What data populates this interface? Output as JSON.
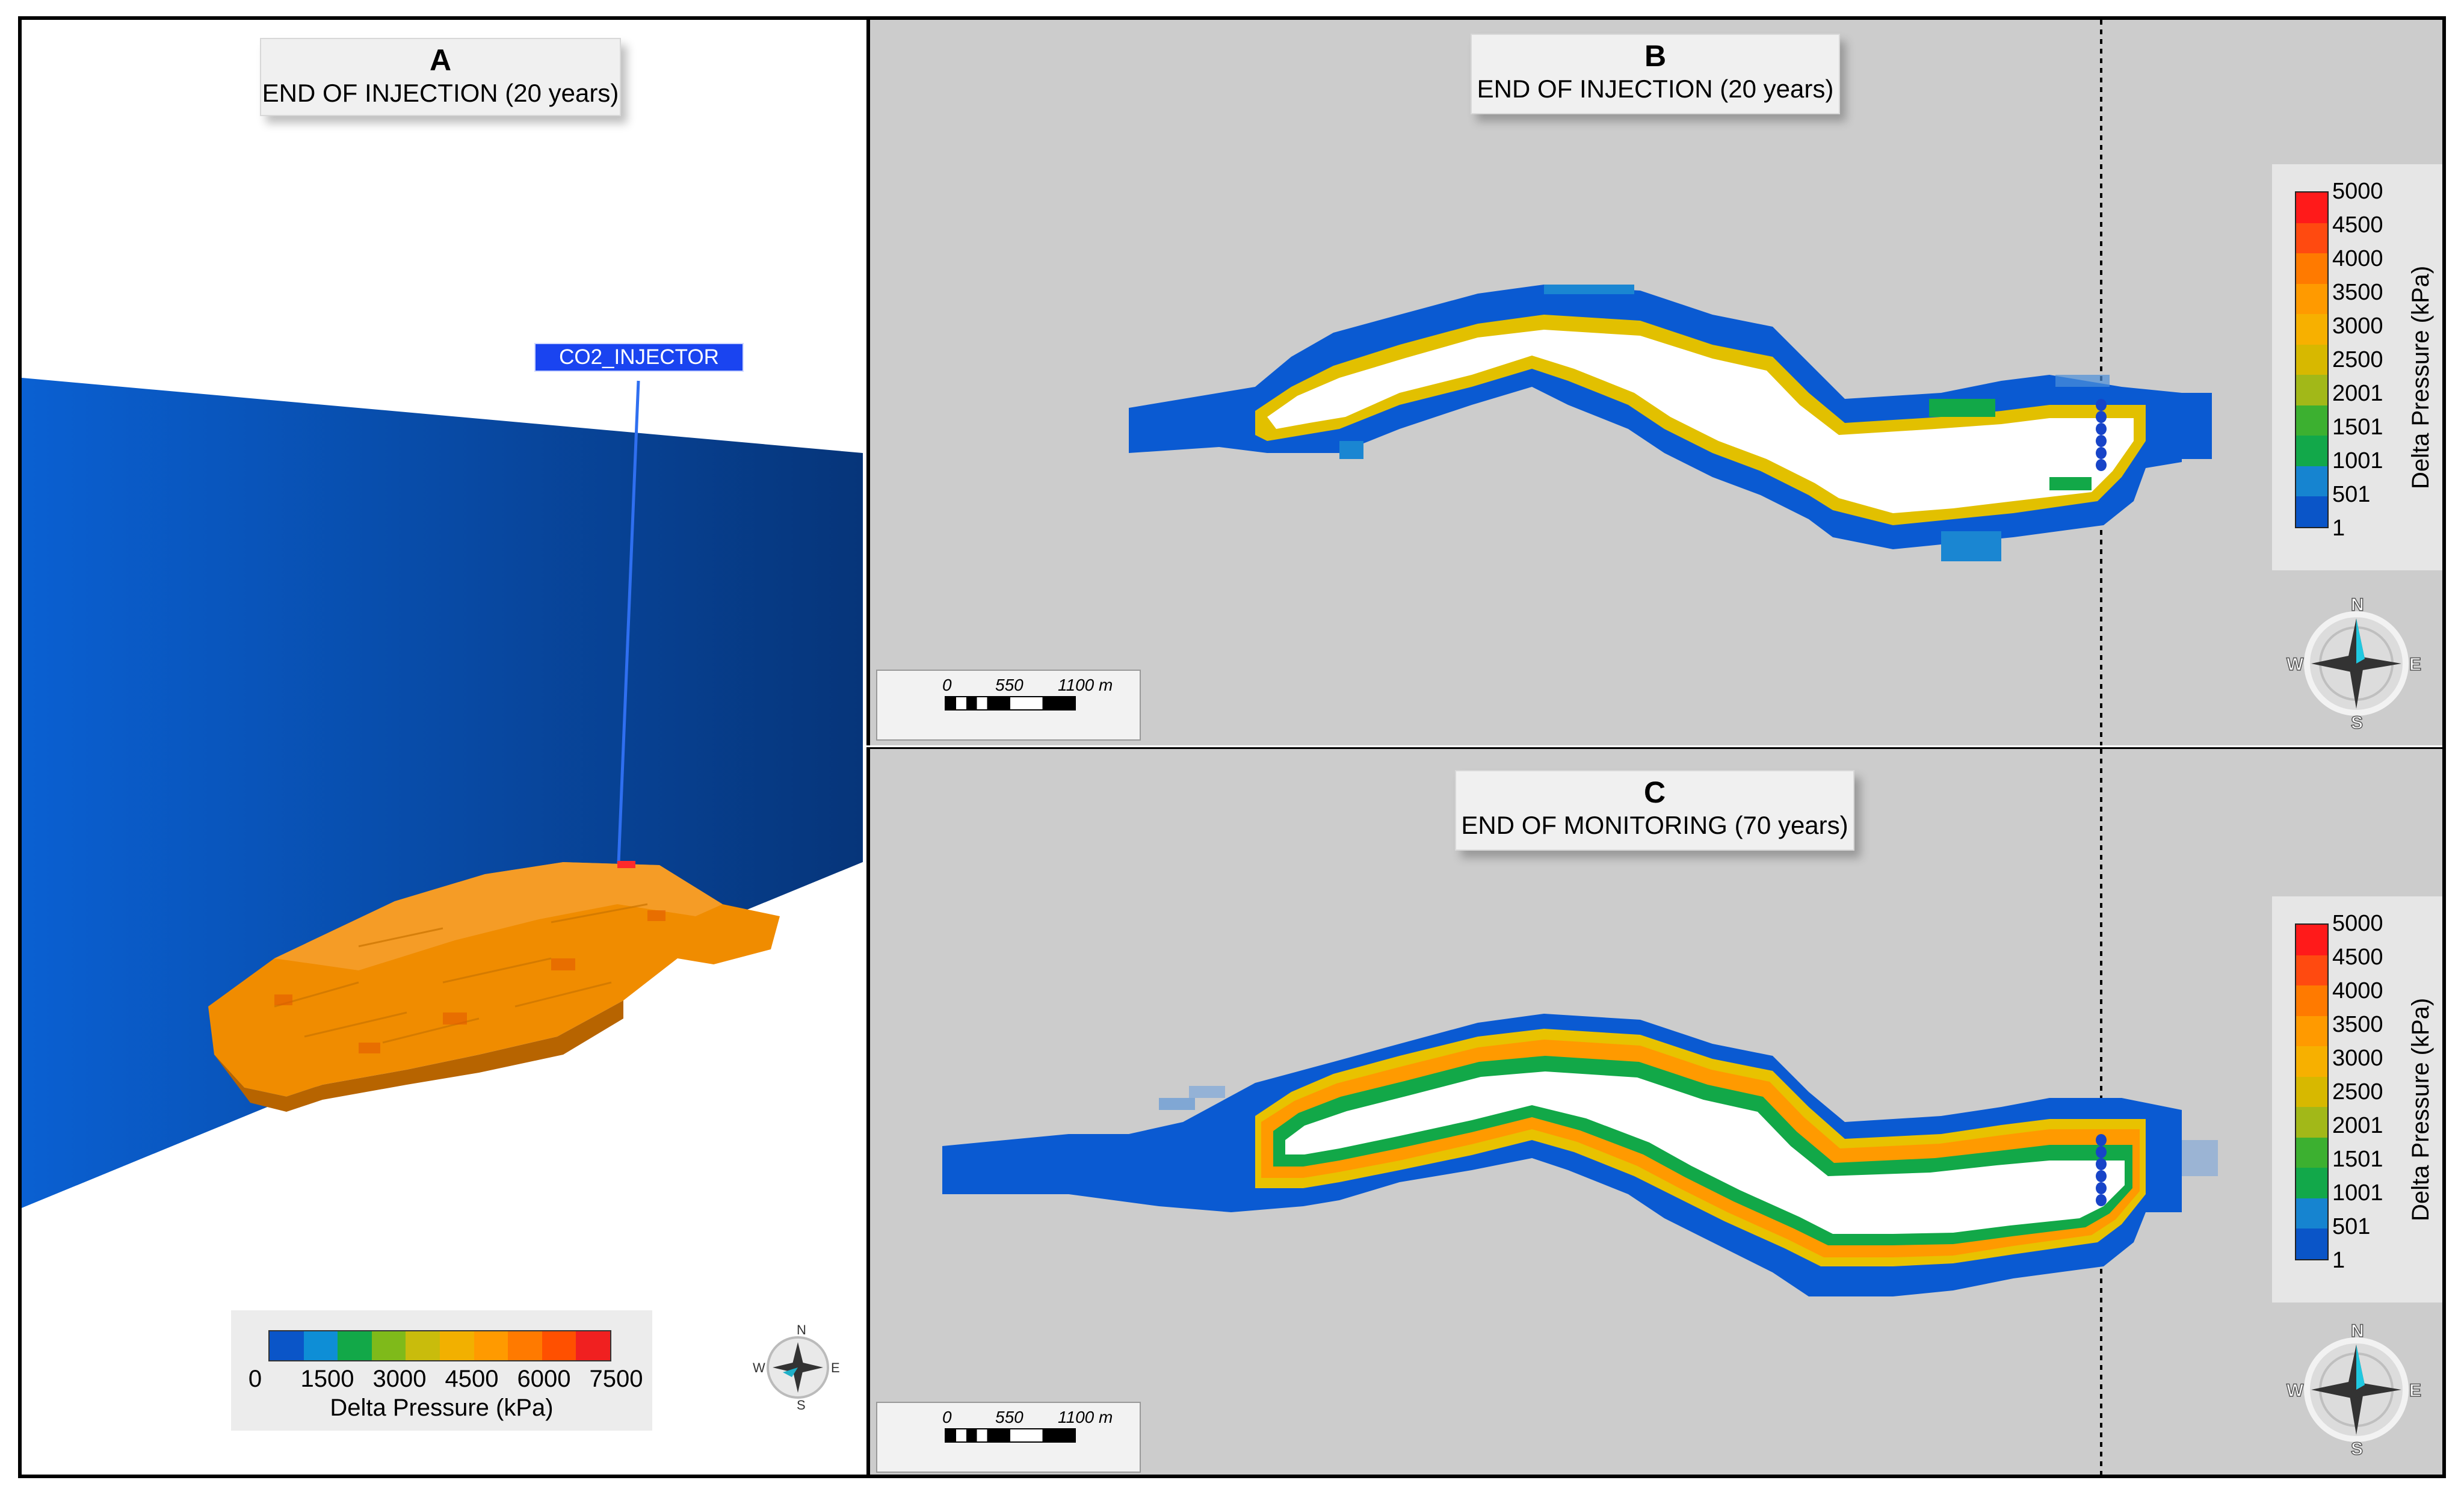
{
  "panel_a": {
    "letter": "A",
    "subtitle": "END OF INJECTION (20 years)",
    "well_label": "CO2_INJECTOR",
    "legend_ticks": [
      "0",
      "1500",
      "3000",
      "4500",
      "6000",
      "7500"
    ],
    "legend_title": "Delta Pressure (kPa)",
    "legend_colors": [
      "#0a55c8",
      "#0e8ed6",
      "#12a848",
      "#7fba1a",
      "#c9bc0c",
      "#f2b000",
      "#ff9a00",
      "#ff7a00",
      "#ff5000",
      "#f02020"
    ],
    "plume_color": "#f08c00",
    "wall_color": "#0a4fb8"
  },
  "panel_b": {
    "letter": "B",
    "subtitle": "END OF INJECTION (20 years)"
  },
  "panel_c": {
    "letter": "C",
    "subtitle": "END OF MONITORING (70 years)"
  },
  "legend": {
    "title": "Delta Pressure (kPa)",
    "labels": [
      "5000",
      "4500",
      "4000",
      "3500",
      "3000",
      "2500",
      "2001",
      "1501",
      "1001",
      "501",
      "1"
    ],
    "colors": [
      "#ff1a1a",
      "#ff4a10",
      "#ff7a00",
      "#ff9a00",
      "#f7b000",
      "#d7b800",
      "#a2b818",
      "#3cb030",
      "#12a84a",
      "#1684d0",
      "#0a55c8"
    ]
  },
  "scale": {
    "labels": [
      "0",
      "550",
      "1100 m"
    ]
  },
  "compass": {
    "n": "N",
    "s": "S",
    "e": "E",
    "w": "W"
  },
  "colors": {
    "background": "#cccccc",
    "blue": "#0a5ad2",
    "yellow": "#e8c200",
    "green": "#12a848",
    "orange": "#ff9a00"
  }
}
